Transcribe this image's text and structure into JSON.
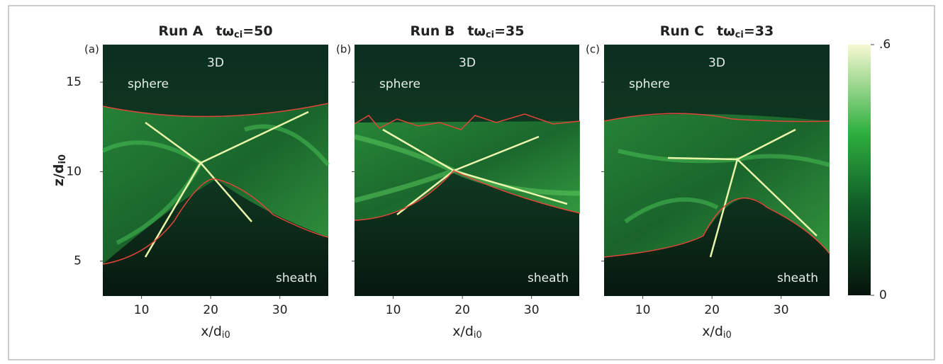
{
  "chart_data": [
    {
      "type": "heatmap",
      "panel_label": "(a)",
      "title": "Run A",
      "time_symbol": "tω",
      "time_subscript": "ci",
      "time_value": "=50",
      "xlabel": "x/d",
      "xlabel_subscript": "i0",
      "ylabel": "z/d",
      "ylabel_subscript": "i0",
      "xlim": [
        4.4,
        37
      ],
      "ylim": [
        3.05,
        17.1
      ],
      "xticks": [
        10,
        20,
        30
      ],
      "yticks": [
        5,
        10,
        15
      ],
      "annotations": [
        "3D",
        "sphere",
        "sheath"
      ]
    },
    {
      "type": "heatmap",
      "panel_label": "(b)",
      "title": "Run B",
      "time_symbol": "tω",
      "time_subscript": "ci",
      "time_value": "=35",
      "xlabel": "x/d",
      "xlabel_subscript": "i0",
      "xlim": [
        4.4,
        37
      ],
      "ylim": [
        3.05,
        17.1
      ],
      "xticks": [
        10,
        20,
        30
      ],
      "yticks": [
        5,
        10,
        15
      ],
      "annotations": [
        "3D",
        "sphere",
        "sheath"
      ]
    },
    {
      "type": "heatmap",
      "panel_label": "(c)",
      "title": "Run C",
      "time_symbol": "tω",
      "time_subscript": "ci",
      "time_value": "=33",
      "xlabel": "x/d",
      "xlabel_subscript": "i0",
      "xlim": [
        4.4,
        37
      ],
      "ylim": [
        3.05,
        17.1
      ],
      "xticks": [
        10,
        20,
        30
      ],
      "yticks": [
        5,
        10,
        15
      ],
      "annotations": [
        "3D",
        "sphere",
        "sheath"
      ]
    }
  ],
  "colorbar": {
    "clim": [
      0,
      0.6
    ],
    "ticks": [
      {
        "value": 0.6,
        "label": ".6"
      },
      0
    ]
  }
}
